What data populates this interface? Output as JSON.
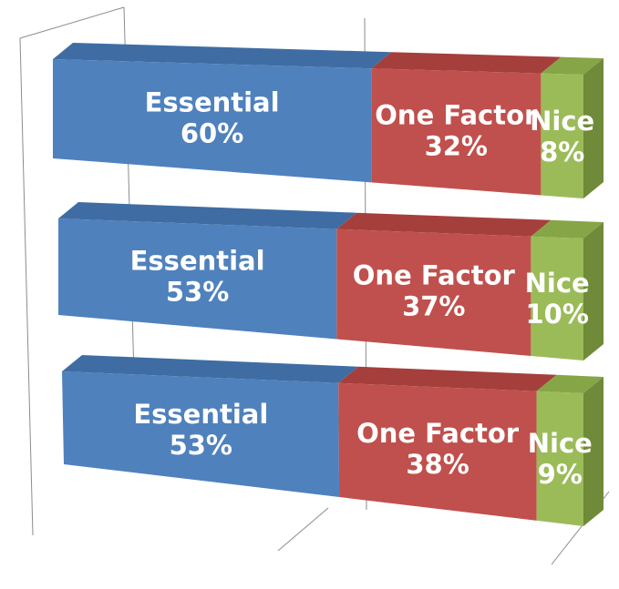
{
  "chart_data": {
    "type": "bar",
    "stacked": true,
    "orientation": "horizontal",
    "percent_stacked": true,
    "rows": [
      {
        "segments": [
          {
            "label": "Essential",
            "value": 60,
            "display": "60%"
          },
          {
            "label": "One Factor",
            "value": 32,
            "display": "32%"
          },
          {
            "label": "Nice",
            "value": 8,
            "display": "8%"
          }
        ]
      },
      {
        "segments": [
          {
            "label": "Essential",
            "value": 53,
            "display": "53%"
          },
          {
            "label": "One Factor",
            "value": 37,
            "display": "37%"
          },
          {
            "label": "Nice",
            "value": 10,
            "display": "10%"
          }
        ]
      },
      {
        "segments": [
          {
            "label": "Essential",
            "value": 53,
            "display": "53%"
          },
          {
            "label": "One Factor",
            "value": 38,
            "display": "38%"
          },
          {
            "label": "Nice",
            "value": 9,
            "display": "9%"
          }
        ]
      }
    ],
    "xlim": [
      0,
      100
    ],
    "grid": true,
    "legend": "none",
    "title": "",
    "xlabel": "",
    "ylabel": "",
    "colors": {
      "Essential": {
        "front": "#4f81bd",
        "top": "#3f6da3",
        "side": "#2f5486"
      },
      "One Factor": {
        "front": "#c0504d",
        "top": "#a53f3c",
        "side": "#8a302e"
      },
      "Nice": {
        "front": "#9bbb59",
        "top": "#86a547",
        "side": "#6f8a39"
      }
    }
  }
}
